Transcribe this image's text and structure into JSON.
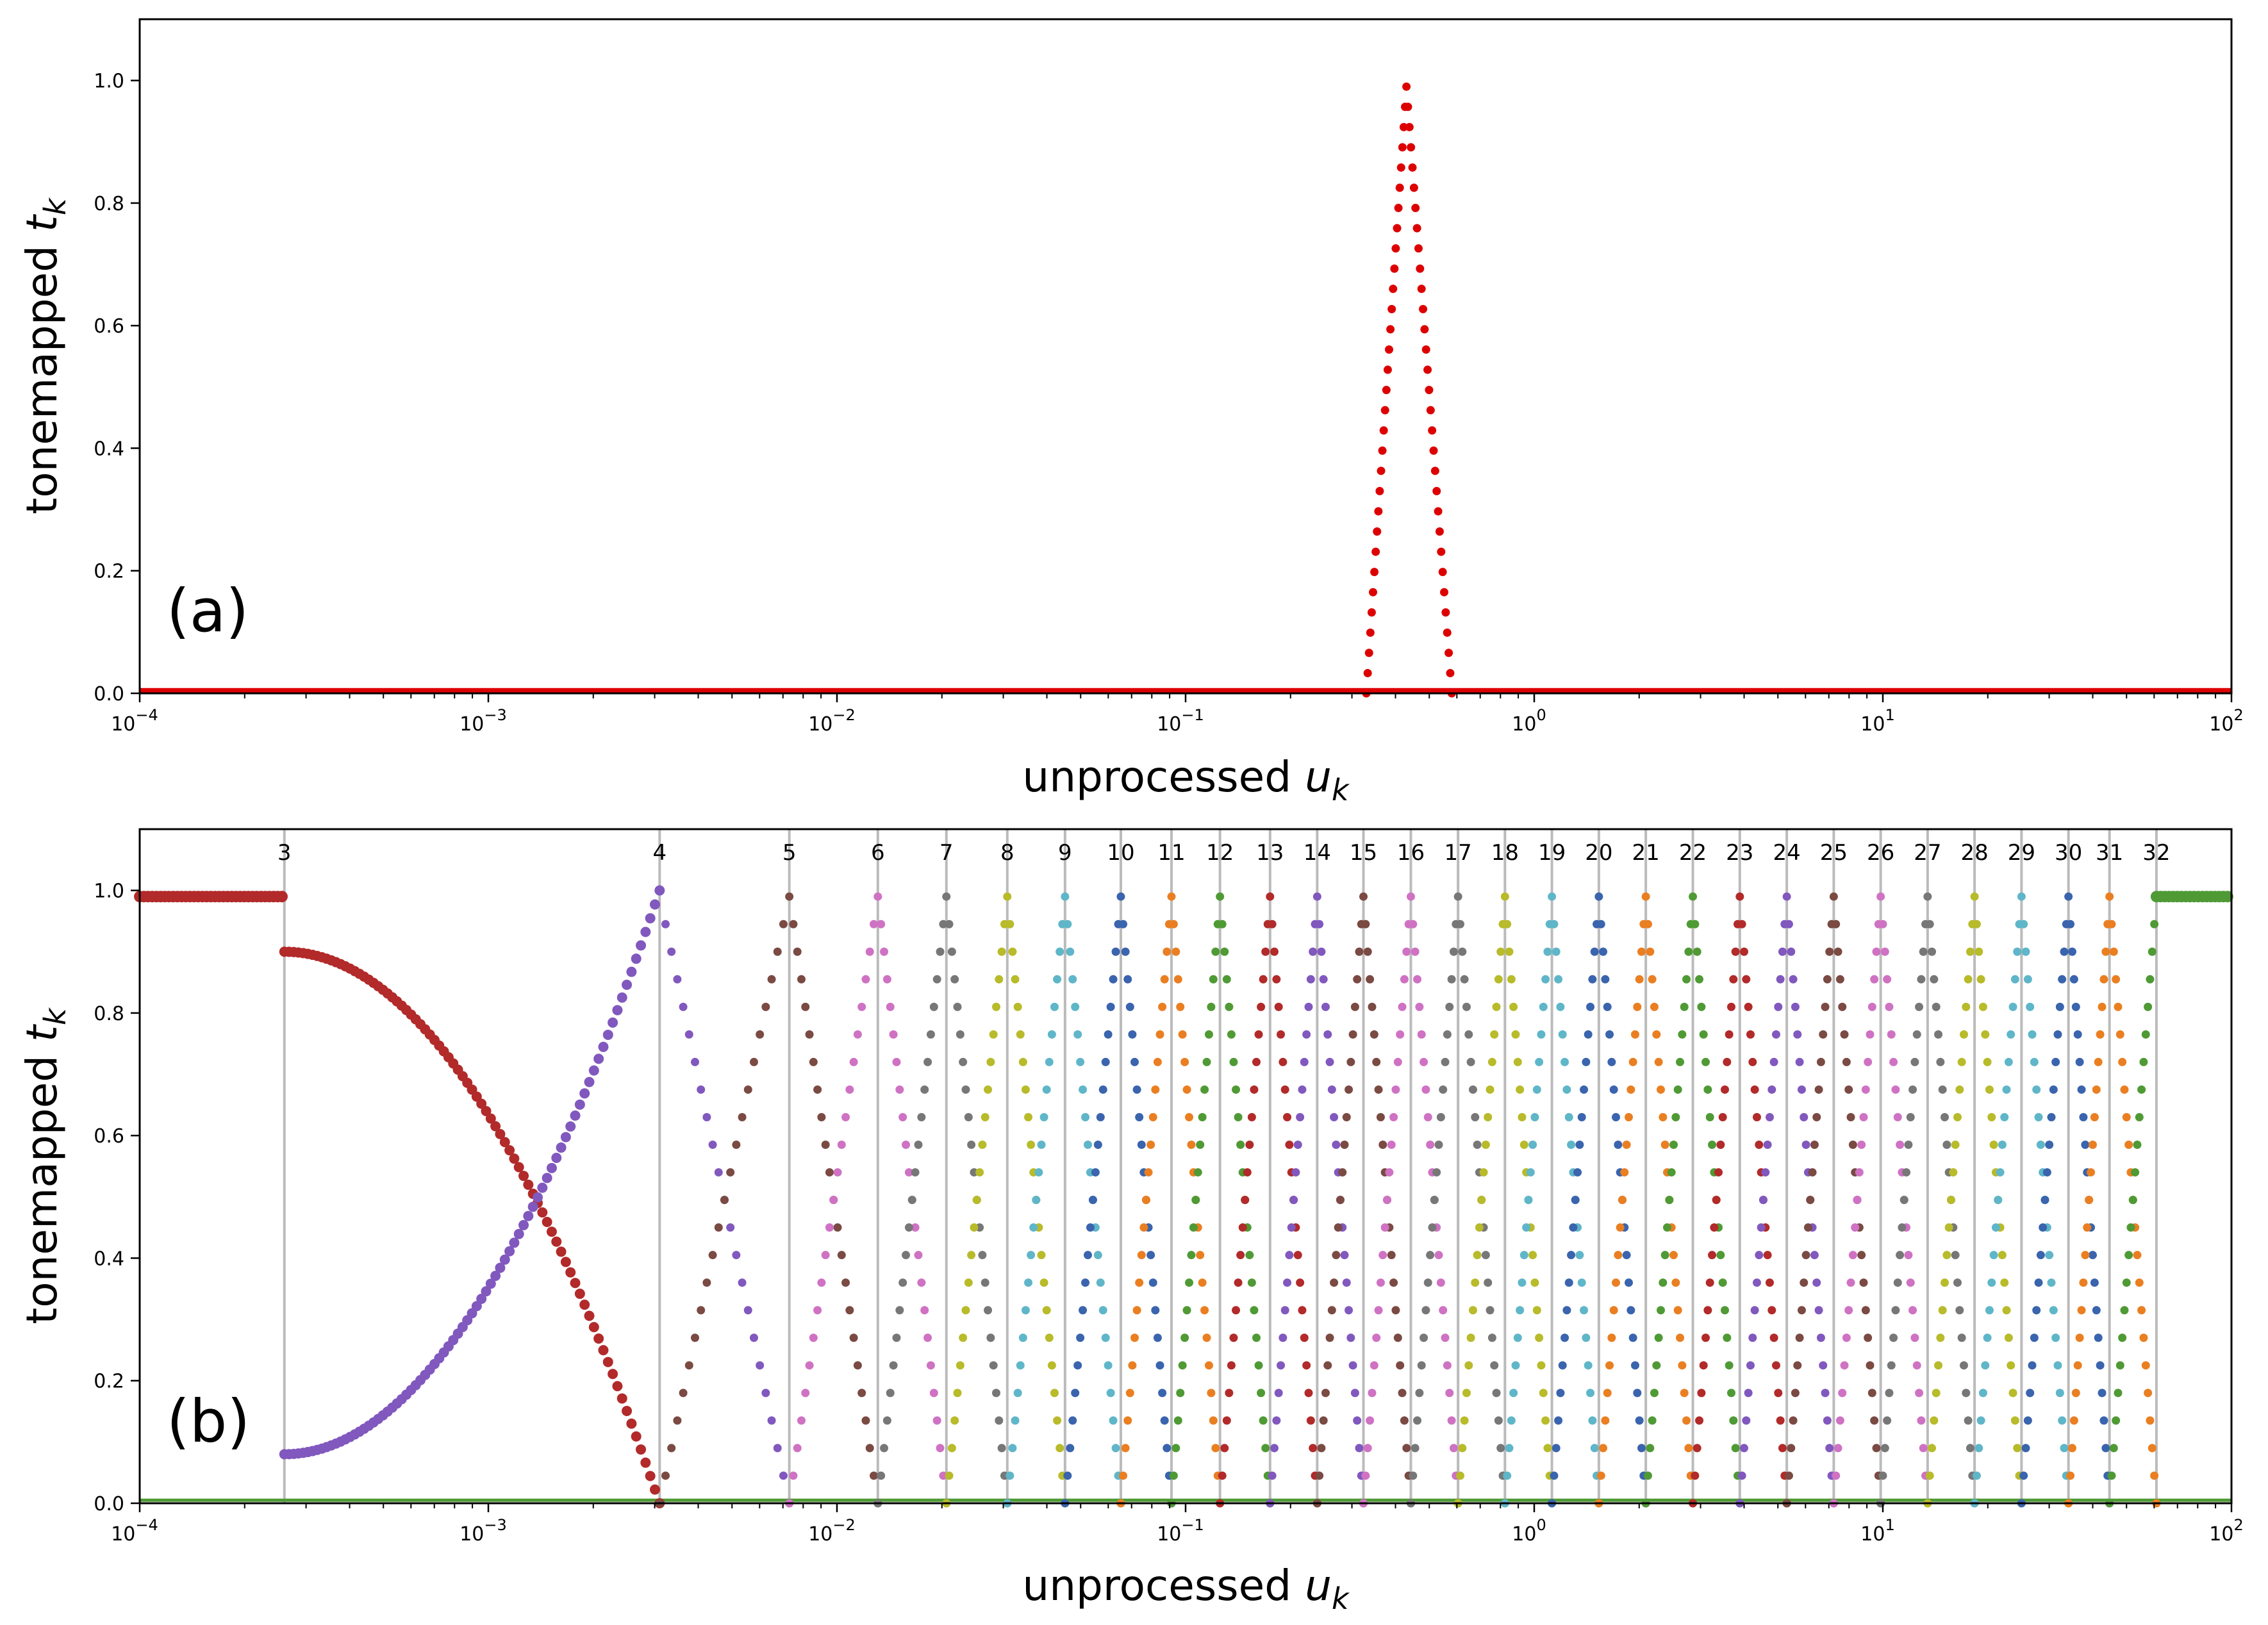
{
  "figure": {
    "panels": [
      {
        "id": "a",
        "panel_label": "(a)",
        "xlabel": "unprocessed",
        "xlabel_var": "u",
        "xlabel_sub": "k",
        "ylabel": "tonemapped",
        "ylabel_var": "t",
        "ylabel_sub": "k"
      },
      {
        "id": "b",
        "panel_label": "(b)",
        "xlabel": "unprocessed",
        "xlabel_var": "u",
        "xlabel_sub": "k",
        "ylabel": "tonemapped",
        "ylabel_var": "t",
        "ylabel_sub": "k"
      }
    ]
  },
  "chart_data": [
    {
      "type": "scatter",
      "panel_label": "(a)",
      "x_scale": "log",
      "xlim": [
        0.0001,
        100
      ],
      "ylim": [
        0,
        1.1
      ],
      "x_ticks": [
        {
          "value": 0.0001,
          "mantissa": "10",
          "exp": "−4"
        },
        {
          "value": 0.001,
          "mantissa": "10",
          "exp": "−3"
        },
        {
          "value": 0.01,
          "mantissa": "10",
          "exp": "−2"
        },
        {
          "value": 0.1,
          "mantissa": "10",
          "exp": "−1"
        },
        {
          "value": 1,
          "mantissa": "10",
          "exp": "0"
        },
        {
          "value": 10,
          "mantissa": "10",
          "exp": "1"
        },
        {
          "value": 100,
          "mantissa": "10",
          "exp": "2"
        }
      ],
      "y_ticks": [
        "0.0",
        "0.2",
        "0.4",
        "0.6",
        "0.8",
        "1.0"
      ],
      "grid": false,
      "series": [
        {
          "color": "#dd0000",
          "shape": "triangular-peak",
          "x_start": 0.33,
          "x_peak": 0.43,
          "x_end": 0.58,
          "y_peak": 0.99,
          "baseline": 0.005
        }
      ]
    },
    {
      "type": "scatter",
      "panel_label": "(b)",
      "x_scale": "log",
      "xlim": [
        0.0001,
        100
      ],
      "ylim": [
        0,
        1.1
      ],
      "x_ticks": [
        {
          "value": 0.0001,
          "mantissa": "10",
          "exp": "−4"
        },
        {
          "value": 0.001,
          "mantissa": "10",
          "exp": "−3"
        },
        {
          "value": 0.01,
          "mantissa": "10",
          "exp": "−2"
        },
        {
          "value": 0.1,
          "mantissa": "10",
          "exp": "−1"
        },
        {
          "value": 1,
          "mantissa": "10",
          "exp": "0"
        },
        {
          "value": 10,
          "mantissa": "10",
          "exp": "1"
        },
        {
          "value": 100,
          "mantissa": "10",
          "exp": "2"
        }
      ],
      "y_ticks": [
        "0.0",
        "0.2",
        "0.4",
        "0.6",
        "0.8",
        "1.0"
      ],
      "grid": false,
      "vline_color": "#bbbbbb",
      "vlines": [
        {
          "label": "3",
          "x": 0.00026
        },
        {
          "label": "4",
          "x": 0.0031
        },
        {
          "label": "5",
          "x": 0.0073
        },
        {
          "label": "6",
          "x": 0.0131
        },
        {
          "label": "7",
          "x": 0.0206
        },
        {
          "label": "8",
          "x": 0.0308
        },
        {
          "label": "9",
          "x": 0.0451
        },
        {
          "label": "10",
          "x": 0.0652
        },
        {
          "label": "11",
          "x": 0.0911
        },
        {
          "label": "12",
          "x": 0.1255
        },
        {
          "label": "13",
          "x": 0.1747
        },
        {
          "label": "14",
          "x": 0.2385
        },
        {
          "label": "15",
          "x": 0.3237
        },
        {
          "label": "16",
          "x": 0.4427
        },
        {
          "label": "17",
          "x": 0.6047
        },
        {
          "label": "18",
          "x": 0.8243
        },
        {
          "label": "19",
          "x": 1.1239
        },
        {
          "label": "20",
          "x": 1.5326
        },
        {
          "label": "21",
          "x": 2.0898
        },
        {
          "label": "22",
          "x": 2.8514
        },
        {
          "label": "23",
          "x": 3.888
        },
        {
          "label": "24",
          "x": 5.3025
        },
        {
          "label": "25",
          "x": 7.2305
        },
        {
          "label": "26",
          "x": 9.8588
        },
        {
          "label": "27",
          "x": 13.441
        },
        {
          "label": "28",
          "x": 18.327
        },
        {
          "label": "29",
          "x": 24.988
        },
        {
          "label": "30",
          "x": 34.076
        },
        {
          "label": "31",
          "x": 44.681
        },
        {
          "label": "32",
          "x": 60.924
        }
      ],
      "series_colors": [
        "#b22a2a",
        "#8158be",
        "#7a4a43",
        "#cf72c3",
        "#777777",
        "#b8bb2a",
        "#5fb6c9",
        "#3a64ad",
        "#ea7f22",
        "#4f9a35"
      ],
      "series_summary": [
        {
          "color": "#b22a2a",
          "description": "1.0 below line 3; drops to 0.9 at line 3 and falls to 0 at line 4"
        },
        {
          "color": "#8158be",
          "description": "rises from 0.08 at line 3 to 1.0 at line 4; falls to 0 at line 5"
        },
        {
          "color": "#7a4a43",
          "description": "rises from 0 at line 4 to 1.0 at line 5; falls to 0 at line 6"
        },
        {
          "color": "#4f9a35",
          "description": "1.0 above line 32"
        },
        {
          "description": "each further colour rises from 0 at line n-1 to 1.0 at line n and falls back to 0 at line n+1; colours cycle in series_colors order"
        }
      ]
    }
  ]
}
